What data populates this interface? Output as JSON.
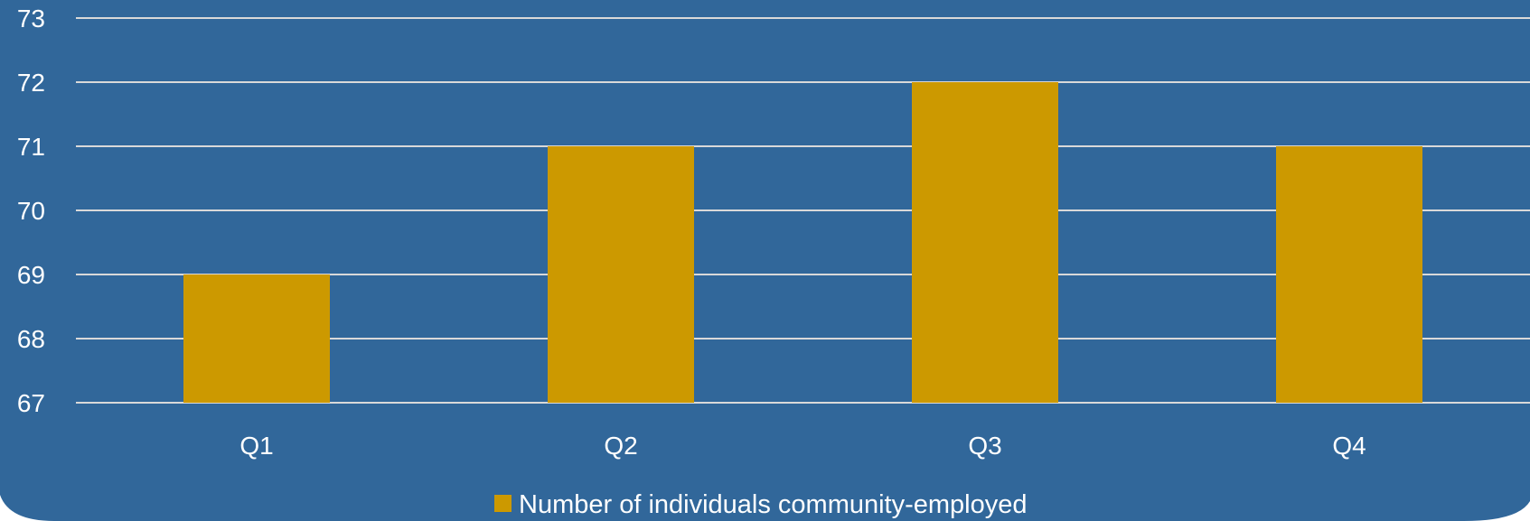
{
  "chart_data": {
    "type": "bar",
    "categories": [
      "Q1",
      "Q2",
      "Q3",
      "Q4"
    ],
    "series": [
      {
        "name": "Number of individuals community-employed",
        "values": [
          69,
          71,
          72,
          71
        ]
      }
    ],
    "ylim": [
      67,
      73
    ],
    "yticks": [
      "67",
      "68",
      "69",
      "70",
      "71",
      "72",
      "73"
    ],
    "xlabel": "",
    "ylabel": "",
    "title": "",
    "grid": true,
    "legend_position": "bottom-center"
  },
  "colors": {
    "background": "#31679a",
    "bar": "#cc9900",
    "gridline": "#d9d9d9",
    "text": "#ffffff"
  }
}
